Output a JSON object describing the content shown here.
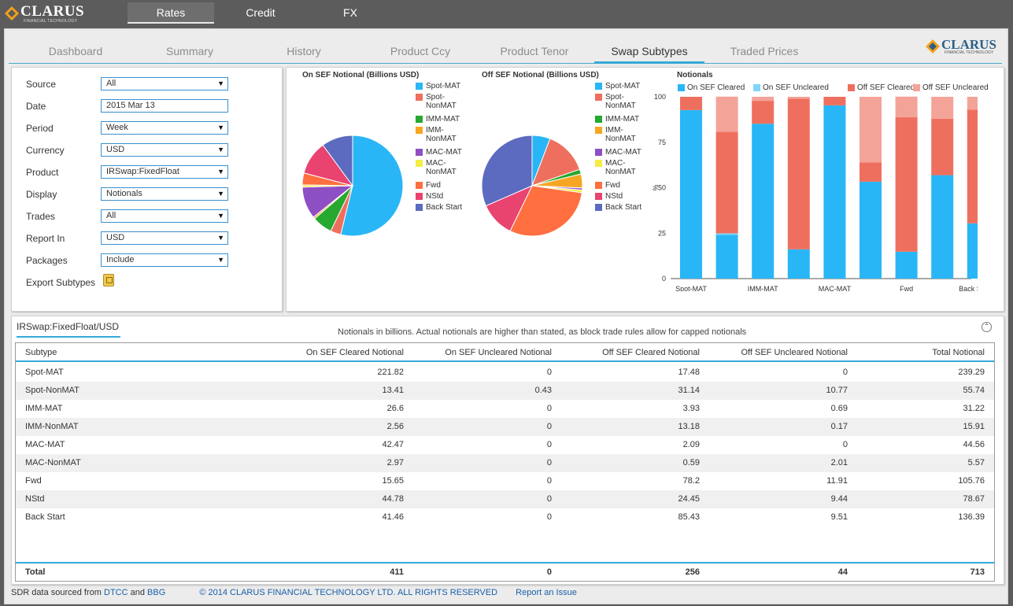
{
  "brand": {
    "name": "CLARUS",
    "tagline": "FINANCIAL TECHNOLOGY"
  },
  "top_nav": [
    {
      "label": "Rates",
      "active": true
    },
    {
      "label": "Credit",
      "active": false
    },
    {
      "label": "FX",
      "active": false
    }
  ],
  "sub_tabs": [
    {
      "label": "Dashboard",
      "active": false
    },
    {
      "label": "Summary",
      "active": false
    },
    {
      "label": "History",
      "active": false
    },
    {
      "label": "Product Ccy",
      "active": false
    },
    {
      "label": "Product Tenor",
      "active": false
    },
    {
      "label": "Swap Subtypes",
      "active": true
    },
    {
      "label": "Traded Prices",
      "active": false
    }
  ],
  "filters": [
    {
      "label": "Source",
      "value": "All",
      "type": "select"
    },
    {
      "label": "Date",
      "value": "2015 Mar 13",
      "type": "input"
    },
    {
      "label": "Period",
      "value": "Week",
      "type": "select"
    },
    {
      "label": "Currency",
      "value": "USD",
      "type": "select"
    },
    {
      "label": "Product",
      "value": "IRSwap:FixedFloat",
      "type": "select"
    },
    {
      "label": "Display",
      "value": "Notionals",
      "type": "select"
    },
    {
      "label": "Trades",
      "value": "All",
      "type": "select"
    },
    {
      "label": "Report In",
      "value": "USD",
      "type": "select"
    },
    {
      "label": "Packages",
      "value": "Include",
      "type": "select"
    }
  ],
  "export_label": "Export Subtypes",
  "colors": {
    "Spot-MAT": "#29b6f6",
    "Spot-NonMAT": "#ef6f5e",
    "IMM-MAT": "#27a82f",
    "IMM-NonMAT": "#f6a623",
    "MAC-MAT": "#8e4fc4",
    "MAC-NonMAT": "#f5ec44",
    "Fwd": "#ff6f40",
    "NStd": "#e9436f",
    "Back Start": "#5c6bc0",
    "On SEF Cleared": "#29b6f6",
    "On SEF Uncleared": "#81d4fa",
    "Off SEF Cleared": "#ef6f5e",
    "Off SEF Uncleared": "#f4a399",
    "accent": "#35a9d9"
  },
  "chart_data": [
    {
      "type": "pie",
      "title": "On SEF Notional (Billions USD)",
      "categories": [
        "Spot-MAT",
        "Spot-NonMAT",
        "IMM-MAT",
        "IMM-NonMAT",
        "MAC-MAT",
        "MAC-NonMAT",
        "Fwd",
        "NStd",
        "Back Start"
      ],
      "legend_labels": [
        [
          "Spot-MAT"
        ],
        [
          "Spot-",
          "NonMAT"
        ],
        [
          "IMM-MAT"
        ],
        [
          "IMM-",
          "NonMAT"
        ],
        [
          "MAC-MAT"
        ],
        [
          "MAC-",
          "NonMAT"
        ],
        [
          "Fwd"
        ],
        [
          "NStd"
        ],
        [
          "Back Start"
        ]
      ],
      "values": [
        221.82,
        13.84,
        26.6,
        2.56,
        42.47,
        2.97,
        15.65,
        44.78,
        41.46
      ]
    },
    {
      "type": "pie",
      "title": "Off SEF Notional (Billions USD)",
      "categories": [
        "Spot-MAT",
        "Spot-NonMAT",
        "IMM-MAT",
        "IMM-NonMAT",
        "MAC-MAT",
        "MAC-NonMAT",
        "Fwd",
        "NStd",
        "Back Start"
      ],
      "legend_labels": [
        [
          "Spot-MAT"
        ],
        [
          "Spot-",
          "NonMAT"
        ],
        [
          "IMM-MAT"
        ],
        [
          "IMM-",
          "NonMAT"
        ],
        [
          "MAC-MAT"
        ],
        [
          "MAC-",
          "NonMAT"
        ],
        [
          "Fwd"
        ],
        [
          "NStd"
        ],
        [
          "Back Start"
        ]
      ],
      "values": [
        17.48,
        41.91,
        4.62,
        13.35,
        2.09,
        2.6,
        90.11,
        33.89,
        94.94
      ]
    },
    {
      "type": "bar",
      "stacked": true,
      "title": "Notionals",
      "ylabel": "%",
      "ylim": [
        0,
        100
      ],
      "yticks": [
        0,
        25,
        50,
        75,
        100
      ],
      "categories": [
        "Spot-MAT",
        "Spot-NonMAT",
        "IMM-MAT",
        "IMM-NonMAT",
        "MAC-MAT",
        "MAC-NonMAT",
        "Fwd",
        "NStd",
        "Back Start"
      ],
      "series": [
        {
          "name": "On SEF Cleared",
          "values": [
            92.7,
            24.1,
            85.2,
            16.1,
            95.3,
            53.3,
            14.8,
            56.9,
            30.4
          ]
        },
        {
          "name": "On SEF Uncleared",
          "values": [
            0,
            0.8,
            0,
            0,
            0,
            0,
            0,
            0,
            0
          ]
        },
        {
          "name": "Off SEF Cleared",
          "values": [
            7.3,
            55.9,
            12.6,
            82.8,
            4.7,
            10.6,
            74.0,
            31.1,
            62.6
          ]
        },
        {
          "name": "Off SEF Uncleared",
          "values": [
            0,
            19.3,
            2.2,
            1.1,
            0,
            36.1,
            11.3,
            12.0,
            7.0
          ]
        }
      ]
    }
  ],
  "table": {
    "title": "IRSwap:FixedFloat/USD",
    "note": "Notionals in billions. Actual notionals are higher than stated, as block trade rules allow for capped notionals",
    "headers": [
      "Subtype",
      "On SEF Cleared Notional",
      "On SEF Uncleared Notional",
      "Off SEF Cleared Notional",
      "Off SEF Uncleared Notional",
      "Total Notional"
    ],
    "rows": [
      [
        "Spot-MAT",
        "221.82",
        "0",
        "17.48",
        "0",
        "239.29"
      ],
      [
        "Spot-NonMAT",
        "13.41",
        "0.43",
        "31.14",
        "10.77",
        "55.74"
      ],
      [
        "IMM-MAT",
        "26.6",
        "0",
        "3.93",
        "0.69",
        "31.22"
      ],
      [
        "IMM-NonMAT",
        "2.56",
        "0",
        "13.18",
        "0.17",
        "15.91"
      ],
      [
        "MAC-MAT",
        "42.47",
        "0",
        "2.09",
        "0",
        "44.56"
      ],
      [
        "MAC-NonMAT",
        "2.97",
        "0",
        "0.59",
        "2.01",
        "5.57"
      ],
      [
        "Fwd",
        "15.65",
        "0",
        "78.2",
        "11.91",
        "105.76"
      ],
      [
        "NStd",
        "44.78",
        "0",
        "24.45",
        "9.44",
        "78.67"
      ],
      [
        "Back Start",
        "41.46",
        "0",
        "85.43",
        "9.51",
        "136.39"
      ]
    ],
    "total": [
      "Total",
      "411",
      "0",
      "256",
      "44",
      "713"
    ]
  },
  "footer": {
    "prefix": "SDR data sourced from",
    "link1": "DTCC",
    "and": "and",
    "link2": "BBG",
    "copyright": "© 2014 CLARUS FINANCIAL TECHNOLOGY LTD. ALL RIGHTS RESERVED",
    "report": "Report an Issue"
  }
}
